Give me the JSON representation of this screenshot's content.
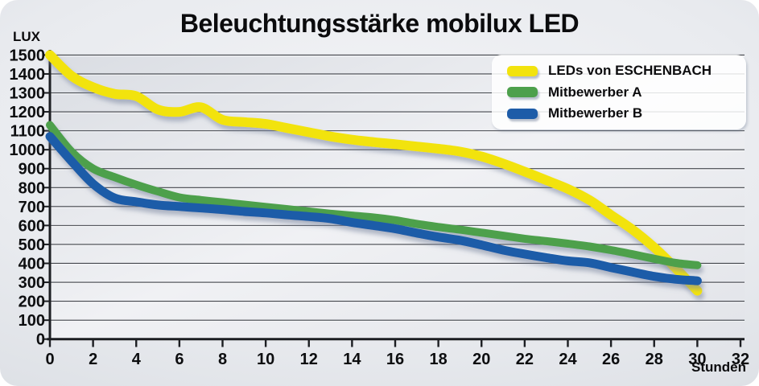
{
  "title": "Beleuchtungsstärke mobilux LED",
  "y_axis_label": "LUX",
  "x_axis_label": "Stunden",
  "colors": {
    "eschenbach_yellow": "#f2e30e",
    "competitor_a_green": "#4da04c",
    "competitor_b_blue": "#1d5ca8",
    "grid_line": "#43464c",
    "axis_line": "#1c1e22",
    "text": "#0d0e10"
  },
  "legend": [
    {
      "label": "LEDs von ESCHENBACH",
      "color": "#f2e30e"
    },
    {
      "label": "Mitbewerber A",
      "color": "#4da04c"
    },
    {
      "label": "Mitbewerber B",
      "color": "#1d5ca8"
    }
  ],
  "chart_data": {
    "type": "line",
    "title": "Beleuchtungsstärke mobilux LED",
    "xlabel": "Stunden",
    "ylabel": "LUX",
    "xlim": [
      0,
      32
    ],
    "ylim": [
      0,
      1500
    ],
    "grid": "horizontal",
    "legend_position": "top-right",
    "x_ticks": [
      0,
      2,
      4,
      6,
      8,
      10,
      12,
      14,
      16,
      18,
      20,
      22,
      24,
      26,
      28,
      30,
      32
    ],
    "y_ticks": [
      0,
      100,
      200,
      300,
      400,
      500,
      600,
      700,
      800,
      900,
      1000,
      1100,
      1200,
      1300,
      1400,
      1500
    ],
    "x": [
      0,
      1,
      2,
      3,
      4,
      5,
      6,
      7,
      8,
      9,
      10,
      11,
      12,
      13,
      14,
      15,
      16,
      17,
      18,
      19,
      20,
      21,
      22,
      23,
      24,
      25,
      26,
      27,
      28,
      29,
      30
    ],
    "series": [
      {
        "name": "LEDs von ESCHENBACH",
        "color": "#f2e30e",
        "values": [
          1500,
          1390,
          1330,
          1295,
          1283,
          1212,
          1200,
          1224,
          1158,
          1146,
          1136,
          1114,
          1092,
          1070,
          1053,
          1040,
          1029,
          1017,
          1005,
          990,
          964,
          927,
          884,
          839,
          793,
          734,
          655,
          578,
          484,
          374,
          255
        ]
      },
      {
        "name": "Mitbewerber A",
        "color": "#4da04c",
        "values": [
          1130,
          990,
          900,
          855,
          815,
          780,
          748,
          734,
          722,
          710,
          698,
          686,
          674,
          662,
          652,
          642,
          628,
          608,
          592,
          578,
          562,
          546,
          530,
          517,
          504,
          489,
          470,
          448,
          424,
          402,
          390
        ]
      },
      {
        "name": "Mitbewerber B",
        "color": "#1d5ca8",
        "values": [
          1070,
          940,
          820,
          745,
          725,
          708,
          700,
          692,
          684,
          674,
          666,
          656,
          647,
          636,
          616,
          600,
          583,
          560,
          539,
          522,
          497,
          470,
          449,
          430,
          413,
          403,
          378,
          354,
          331,
          316,
          308
        ]
      }
    ]
  }
}
